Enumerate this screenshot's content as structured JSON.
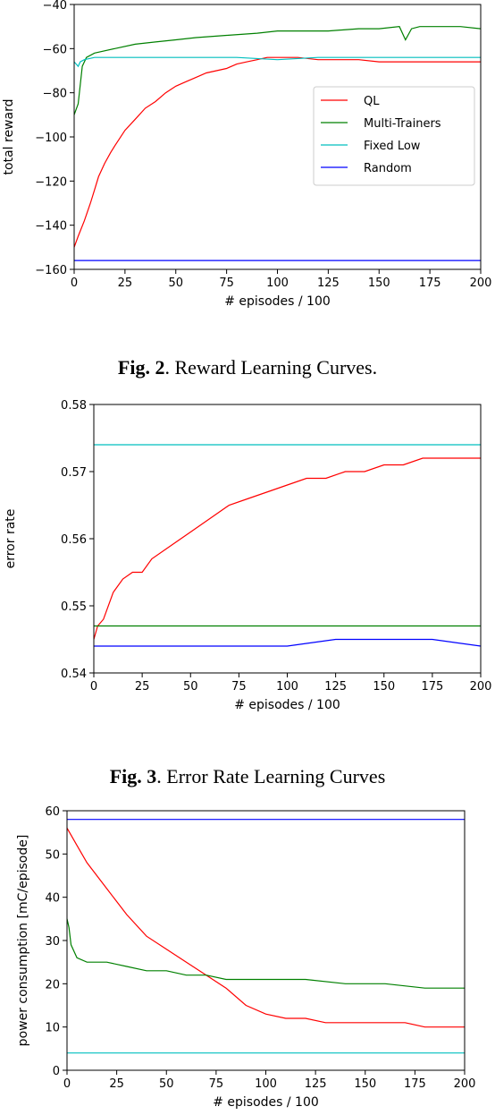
{
  "captions": [
    {
      "label": "Fig. 2",
      "text": ". Reward Learning Curves."
    },
    {
      "label": "Fig. 3",
      "text": ". Error Rate Learning Curves"
    }
  ],
  "chart_data": [
    {
      "type": "line",
      "xlabel": "# episodes / 100",
      "ylabel": "total reward",
      "xlim": [
        0,
        200
      ],
      "ylim": [
        -160,
        -40
      ],
      "xticks": [
        0,
        25,
        50,
        75,
        100,
        125,
        150,
        175,
        200
      ],
      "yticks": [
        -160,
        -140,
        -120,
        -100,
        -80,
        -60,
        -40
      ],
      "grid": false,
      "legend": "center-right",
      "series": [
        {
          "name": "QL",
          "color": "#ff0000",
          "x": [
            0,
            2,
            5,
            8,
            10,
            12,
            15,
            18,
            20,
            25,
            30,
            35,
            40,
            45,
            50,
            55,
            60,
            65,
            70,
            75,
            80,
            85,
            90,
            95,
            100,
            110,
            120,
            130,
            140,
            150,
            160,
            170,
            180,
            190,
            200
          ],
          "y": [
            -150,
            -145,
            -138,
            -130,
            -124,
            -118,
            -112,
            -107,
            -104,
            -97,
            -92,
            -87,
            -84,
            -80,
            -77,
            -75,
            -73,
            -71,
            -70,
            -69,
            -67,
            -66,
            -65,
            -64,
            -64,
            -64,
            -65,
            -65,
            -65,
            -66,
            -66,
            -66,
            -66,
            -66,
            -66
          ]
        },
        {
          "name": "Multi-Trainers",
          "color": "#008000",
          "x": [
            0,
            2,
            4,
            6,
            10,
            20,
            30,
            40,
            50,
            60,
            75,
            90,
            100,
            110,
            125,
            140,
            150,
            160,
            163,
            166,
            170,
            180,
            190,
            200
          ],
          "y": [
            -90,
            -85,
            -68,
            -64,
            -62,
            -60,
            -58,
            -57,
            -56,
            -55,
            -54,
            -53,
            -52,
            -52,
            -52,
            -51,
            -51,
            -50,
            -56,
            -51,
            -50,
            -50,
            -50,
            -51
          ]
        },
        {
          "name": "Fixed Low",
          "color": "#00bfbf",
          "x": [
            0,
            1,
            2,
            3,
            5,
            10,
            20,
            40,
            60,
            80,
            100,
            120,
            140,
            160,
            180,
            200
          ],
          "y": [
            -66,
            -67,
            -68,
            -66,
            -65,
            -64,
            -64,
            -64,
            -64,
            -64,
            -65,
            -64,
            -64,
            -64,
            -64,
            -64
          ]
        },
        {
          "name": "Random",
          "color": "#0000ff",
          "x": [
            0,
            25,
            50,
            75,
            100,
            125,
            150,
            175,
            200
          ],
          "y": [
            -156,
            -156,
            -156,
            -156,
            -156,
            -156,
            -156,
            -156,
            -156
          ]
        }
      ]
    },
    {
      "type": "line",
      "xlabel": "# episodes / 100",
      "ylabel": "error rate",
      "xlim": [
        0,
        200
      ],
      "ylim": [
        0.54,
        0.58
      ],
      "xticks": [
        0,
        25,
        50,
        75,
        100,
        125,
        150,
        175,
        200
      ],
      "yticks": [
        0.54,
        0.55,
        0.56,
        0.57,
        0.58
      ],
      "grid": false,
      "series": [
        {
          "name": "QL",
          "color": "#ff0000",
          "x": [
            0,
            2,
            5,
            10,
            15,
            20,
            25,
            30,
            40,
            50,
            60,
            70,
            80,
            90,
            100,
            110,
            120,
            130,
            140,
            150,
            160,
            170,
            180,
            190,
            200
          ],
          "y": [
            0.545,
            0.547,
            0.548,
            0.552,
            0.554,
            0.555,
            0.555,
            0.557,
            0.559,
            0.561,
            0.563,
            0.565,
            0.566,
            0.567,
            0.568,
            0.569,
            0.569,
            0.57,
            0.57,
            0.571,
            0.571,
            0.572,
            0.572,
            0.572,
            0.572
          ]
        },
        {
          "name": "Multi-Trainers",
          "color": "#008000",
          "x": [
            0,
            25,
            50,
            75,
            100,
            125,
            150,
            175,
            200
          ],
          "y": [
            0.547,
            0.547,
            0.547,
            0.547,
            0.547,
            0.547,
            0.547,
            0.547,
            0.547
          ]
        },
        {
          "name": "Fixed Low",
          "color": "#00bfbf",
          "x": [
            0,
            25,
            50,
            75,
            100,
            125,
            150,
            175,
            200
          ],
          "y": [
            0.574,
            0.574,
            0.574,
            0.574,
            0.574,
            0.574,
            0.574,
            0.574,
            0.574
          ]
        },
        {
          "name": "Random",
          "color": "#0000ff",
          "x": [
            0,
            25,
            50,
            75,
            100,
            125,
            150,
            175,
            200
          ],
          "y": [
            0.544,
            0.544,
            0.544,
            0.544,
            0.544,
            0.545,
            0.545,
            0.545,
            0.544
          ]
        }
      ]
    },
    {
      "type": "line",
      "xlabel": "# episodes / 100",
      "ylabel": "power consumption [mC/episode]",
      "xlim": [
        0,
        200
      ],
      "ylim": [
        0,
        60
      ],
      "xticks": [
        0,
        25,
        50,
        75,
        100,
        125,
        150,
        175,
        200
      ],
      "yticks": [
        0,
        10,
        20,
        30,
        40,
        50,
        60
      ],
      "grid": false,
      "series": [
        {
          "name": "QL",
          "color": "#ff0000",
          "x": [
            0,
            5,
            10,
            20,
            30,
            40,
            50,
            60,
            70,
            80,
            90,
            100,
            110,
            120,
            130,
            140,
            150,
            160,
            170,
            180,
            190,
            200
          ],
          "y": [
            56,
            52,
            48,
            42,
            36,
            31,
            28,
            25,
            22,
            19,
            15,
            13,
            12,
            12,
            11,
            11,
            11,
            11,
            11,
            10,
            10,
            10
          ]
        },
        {
          "name": "Multi-Trainers",
          "color": "#008000",
          "x": [
            0,
            1,
            2,
            5,
            10,
            20,
            30,
            40,
            50,
            60,
            70,
            80,
            90,
            100,
            120,
            140,
            160,
            180,
            200
          ],
          "y": [
            35,
            33,
            29,
            26,
            25,
            25,
            24,
            23,
            23,
            22,
            22,
            21,
            21,
            21,
            21,
            20,
            20,
            19,
            19
          ]
        },
        {
          "name": "Fixed Low",
          "color": "#00bfbf",
          "x": [
            0,
            200
          ],
          "y": [
            4,
            4
          ]
        },
        {
          "name": "Random",
          "color": "#0000ff",
          "x": [
            0,
            200
          ],
          "y": [
            58,
            58
          ]
        }
      ]
    }
  ]
}
